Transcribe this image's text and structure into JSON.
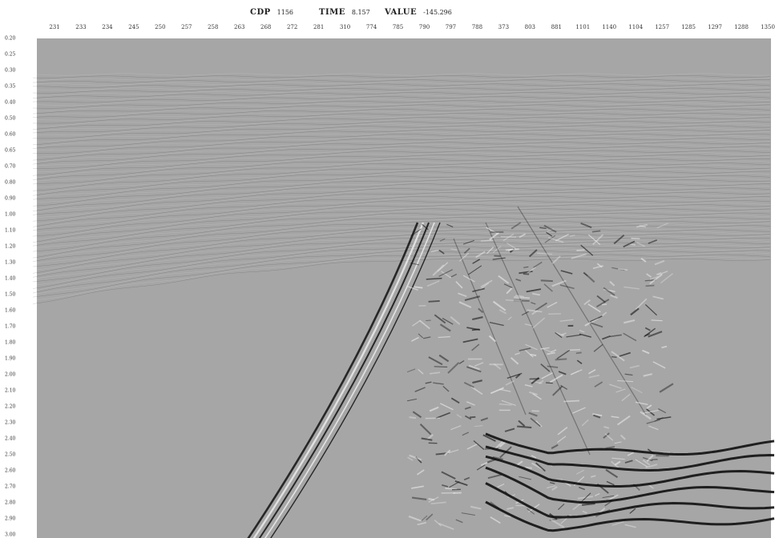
{
  "header": {
    "cdp_label": "CDP",
    "cdp_value": "1156",
    "time_label": "TIME",
    "time_value": "8.157",
    "value_label": "VALUE",
    "value_value": "-145.296"
  },
  "cdp_ticks": [
    "231",
    "233",
    "234",
    "245",
    "250",
    "257",
    "258",
    "263",
    "268",
    "272",
    "281",
    "310",
    "774",
    "785",
    "790",
    "797",
    "788",
    "373",
    "803",
    "881",
    "1101",
    "1140",
    "1104",
    "1257",
    "1285",
    "1297",
    "1288",
    "1350"
  ],
  "time_ticks": [
    "0.20",
    "0.25",
    "0.30",
    "0.35",
    "0.40",
    "0.50",
    "0.60",
    "0.65",
    "0.70",
    "0.80",
    "0.90",
    "1.00",
    "1.10",
    "1.20",
    "1.30",
    "1.40",
    "1.50",
    "1.60",
    "1.70",
    "1.80",
    "1.90",
    "2.00",
    "2.10",
    "2.20",
    "2.30",
    "2.40",
    "2.50",
    "2.60",
    "2.70",
    "2.80",
    "2.90",
    "3.00"
  ],
  "colors": {
    "background": "#a6a6a6",
    "reflector_dark": "#111111",
    "reflector_light": "#ececec"
  }
}
